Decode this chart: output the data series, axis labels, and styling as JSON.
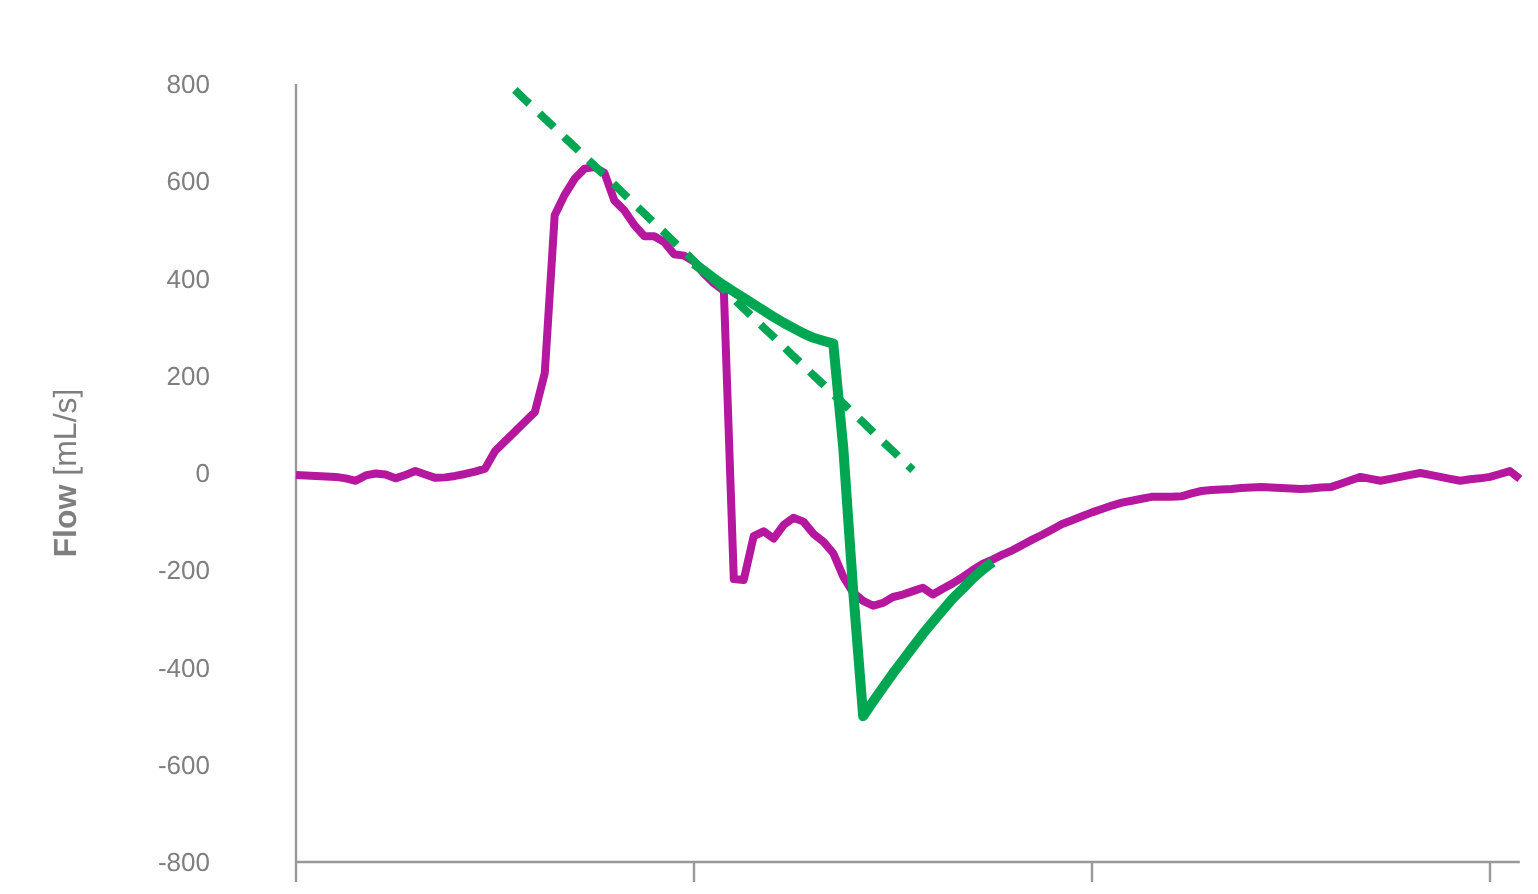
{
  "chart_data": {
    "type": "line",
    "ylabel": "Flow [mL/s]",
    "ylim": [
      -800,
      800
    ],
    "yticks": [
      -800,
      -600,
      -400,
      -200,
      0,
      200,
      400,
      600,
      800
    ],
    "grid": false,
    "categories": [
      null,
      null,
      null,
      null,
      null,
      null,
      null,
      null,
      null,
      null,
      null,
      null,
      null,
      null,
      null,
      null,
      null,
      null,
      null,
      null,
      null,
      null,
      null,
      null,
      null,
      null,
      null,
      null,
      null,
      null,
      null,
      null,
      null,
      null,
      null,
      null,
      null,
      null,
      null,
      null,
      null,
      null,
      null,
      null,
      null,
      null,
      null,
      null,
      null,
      null,
      null,
      null,
      null,
      null,
      null,
      null,
      null,
      null,
      null,
      null,
      null,
      null,
      null,
      null,
      null,
      null,
      null,
      null,
      null,
      null,
      null,
      null,
      null,
      null,
      null,
      null,
      null,
      null,
      null,
      null,
      null,
      null,
      null,
      null,
      null,
      null,
      null,
      null,
      null,
      null,
      null,
      null,
      null,
      null,
      null,
      null,
      null,
      null,
      null,
      null,
      null,
      null,
      null,
      null,
      null,
      null,
      null,
      null,
      null,
      null,
      null,
      null,
      null,
      null,
      null,
      null,
      null,
      null,
      null,
      null,
      null,
      null,
      null,
      null
    ],
    "series": [
      {
        "color": "#b5179e",
        "line_style": "solid",
        "values": [
          -4,
          -5,
          -6,
          -7,
          -8,
          -11,
          -16,
          -5,
          -1,
          -3,
          -11,
          -4,
          4,
          -3,
          -10,
          -9,
          -6,
          -2,
          3,
          9,
          45,
          65,
          85,
          105,
          125,
          205,
          530,
          572,
          605,
          626,
          629,
          617,
          560,
          540,
          510,
          487,
          487,
          475,
          450,
          447,
          435,
          410,
          390,
          375,
          -218,
          -220,
          -130,
          -120,
          -135,
          -107,
          -92,
          -100,
          -125,
          -141,
          -165,
          -213,
          -246,
          -263,
          -273,
          -267,
          -255,
          -250,
          -243,
          -236,
          -250,
          -238,
          -227,
          -214,
          -200,
          -187,
          -178,
          -168,
          -159,
          -148,
          -137,
          -127,
          -116,
          -105,
          -97,
          -89,
          -81,
          -74,
          -67,
          -61,
          -57,
          -53,
          -49,
          -49,
          -49,
          -48,
          -42,
          -37,
          -35,
          -34,
          -33,
          -31,
          -30,
          -29,
          -30,
          -31,
          -32,
          -33,
          -32,
          -30,
          -29,
          -22,
          -15,
          -8,
          -12,
          -16,
          -12,
          -8,
          -4,
          0,
          -4,
          -8,
          -12,
          -16,
          -13,
          -11,
          -8,
          -2,
          4,
          -12
        ]
      },
      {
        "color": "#00a651",
        "line_style": "dashed",
        "values": [
          null,
          null,
          null,
          null,
          null,
          null,
          null,
          null,
          null,
          null,
          null,
          null,
          null,
          null,
          null,
          null,
          null,
          null,
          null,
          null,
          null,
          null,
          788,
          768,
          749,
          729,
          710,
          690,
          671,
          651,
          632,
          612,
          593,
          573,
          553,
          534,
          514,
          495,
          475,
          456,
          436,
          416,
          397,
          377,
          358,
          338,
          319,
          299,
          280,
          260,
          240,
          221,
          201,
          182,
          162,
          143,
          123,
          104,
          84,
          64,
          45,
          25,
          6,
          null,
          null,
          null,
          null,
          null,
          null,
          null,
          null,
          null,
          null,
          null,
          null,
          null,
          null,
          null,
          null,
          null,
          null,
          null,
          null,
          null,
          null,
          null,
          null,
          null,
          null,
          null,
          null,
          null,
          null,
          null,
          null,
          null,
          null,
          null,
          null,
          null,
          null,
          null,
          null,
          null,
          null,
          null,
          null,
          null,
          null,
          null,
          null,
          null,
          null,
          null,
          null,
          null,
          null,
          null,
          null,
          null,
          null,
          null,
          null,
          null
        ]
      },
      {
        "color": "#00a651",
        "line_style": "solid",
        "values": [
          null,
          null,
          null,
          null,
          null,
          null,
          null,
          null,
          null,
          null,
          null,
          null,
          null,
          null,
          null,
          null,
          null,
          null,
          null,
          null,
          null,
          null,
          null,
          null,
          null,
          null,
          null,
          null,
          null,
          null,
          null,
          null,
          null,
          null,
          null,
          null,
          null,
          null,
          null,
          null,
          431,
          416,
          400,
          386,
          373,
          360,
          347,
          334,
          321,
          309,
          298,
          287,
          278,
          272,
          266,
          52,
          -243,
          -500,
          -470,
          -441,
          -412,
          -385,
          -358,
          -331,
          -306,
          -282,
          -258,
          -238,
          -217,
          -199,
          -183,
          null,
          null,
          null,
          null,
          null,
          null,
          null,
          null,
          null,
          null,
          null,
          null,
          null,
          null,
          null,
          null,
          null,
          null,
          null,
          null,
          null,
          null,
          null,
          null,
          null,
          null,
          null,
          null,
          null,
          null,
          null,
          null,
          null,
          null,
          null,
          null,
          null,
          null,
          null,
          null,
          null,
          null,
          null,
          null,
          null,
          null,
          null,
          null,
          null,
          null,
          null,
          null,
          null
        ]
      }
    ]
  }
}
